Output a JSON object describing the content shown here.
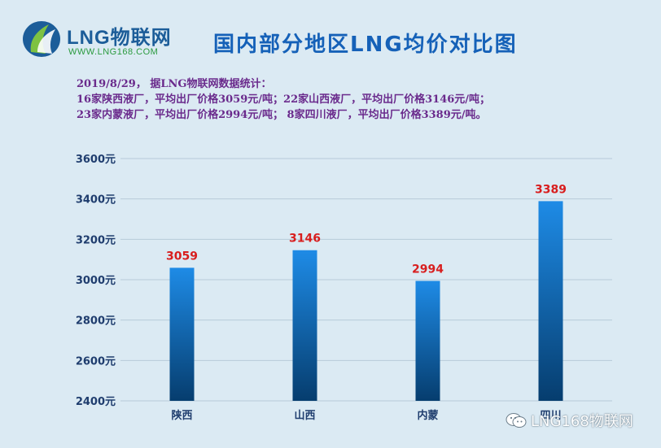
{
  "logo": {
    "text": "LNG物联网",
    "url": "WWW.LNG168.COM"
  },
  "title": "国内部分地区LNG均价对比图",
  "notes": [
    "2019/8/29， 据LNG物联网数据统计：",
    "16家陕西液厂，平均出厂价格3059元/吨；22家山西液厂，平均出厂价格3146元/吨；",
    "23家内蒙液厂，平均出厂价格2994元/吨； 8家四川液厂，平均出厂价格3389元/吨。"
  ],
  "chart_data": {
    "type": "bar",
    "categories": [
      "陕西",
      "山西",
      "内蒙",
      "四川"
    ],
    "values": [
      3059,
      3146,
      2994,
      3389
    ],
    "data_labels": [
      "3059",
      "3146",
      "2994",
      "3389"
    ],
    "title": "",
    "xlabel": "",
    "ylabel": "",
    "ylim": [
      2400,
      3600
    ],
    "yticks": [
      2400,
      2600,
      2800,
      3000,
      3200,
      3400,
      3600
    ],
    "ytick_labels": [
      "2400元",
      "2600元",
      "2800元",
      "3000元",
      "3200元",
      "3400元",
      "3600元"
    ],
    "grid": true,
    "legend": "none",
    "colors": {
      "bar_top": "#1e8be6",
      "bar_bottom": "#063d6e",
      "data_label": "#d81e1e",
      "axis_text": "#1f3d6e",
      "grid": "#b7cbd8"
    }
  },
  "watermark": {
    "text": "LNG168物联网"
  }
}
